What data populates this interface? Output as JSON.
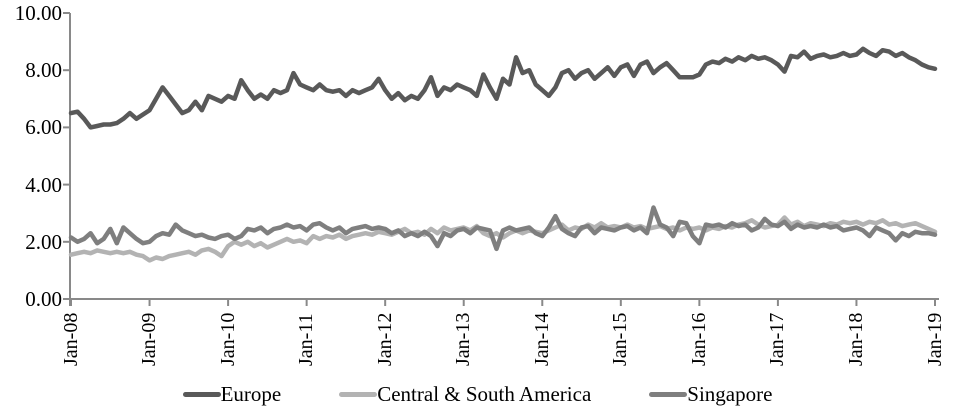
{
  "chart_data": {
    "type": "line",
    "title": "",
    "xlabel": "",
    "ylabel": "",
    "ylim": [
      0,
      10
    ],
    "grid": false,
    "legend_position": "bottom-center",
    "ytick_labels": [
      "0.00",
      "2.00",
      "4.00",
      "6.00",
      "8.00",
      "10.00"
    ],
    "x_tick_labels": [
      "Jan-08",
      "Jan-09",
      "Jan-10",
      "Jan-11",
      "Jan-12",
      "Jan-13",
      "Jan-14",
      "Jan-15",
      "Jan-16",
      "Jan-17",
      "Jan-18",
      "Jan-19"
    ],
    "x_tick_every": 12,
    "x_frequency": "monthly",
    "axis_color": "#898989",
    "series": [
      {
        "name": "Europe",
        "color": "#595959",
        "values": [
          6.5,
          6.55,
          6.3,
          6.0,
          6.05,
          6.1,
          6.1,
          6.15,
          6.3,
          6.5,
          6.3,
          6.45,
          6.6,
          7.0,
          7.4,
          7.1,
          6.8,
          6.5,
          6.6,
          6.9,
          6.6,
          7.1,
          7.0,
          6.9,
          7.1,
          7.0,
          7.65,
          7.3,
          7.0,
          7.15,
          7.0,
          7.3,
          7.2,
          7.3,
          7.9,
          7.5,
          7.4,
          7.3,
          7.5,
          7.3,
          7.25,
          7.3,
          7.1,
          7.3,
          7.2,
          7.3,
          7.4,
          7.7,
          7.3,
          7.0,
          7.2,
          6.95,
          7.1,
          7.0,
          7.3,
          7.75,
          7.1,
          7.4,
          7.3,
          7.5,
          7.4,
          7.3,
          7.1,
          7.85,
          7.4,
          7.0,
          7.7,
          7.5,
          8.45,
          7.9,
          8.0,
          7.5,
          7.3,
          7.1,
          7.4,
          7.9,
          8.0,
          7.7,
          7.9,
          8.0,
          7.7,
          7.9,
          8.1,
          7.8,
          8.1,
          8.2,
          7.8,
          8.2,
          8.3,
          7.9,
          8.1,
          8.25,
          8.0,
          7.75,
          7.75,
          7.75,
          7.85,
          8.2,
          8.3,
          8.25,
          8.4,
          8.3,
          8.45,
          8.35,
          8.5,
          8.4,
          8.45,
          8.35,
          8.2,
          7.95,
          8.5,
          8.45,
          8.65,
          8.4,
          8.5,
          8.55,
          8.45,
          8.5,
          8.6,
          8.5,
          8.55,
          8.75,
          8.6,
          8.5,
          8.7,
          8.65,
          8.5,
          8.6,
          8.45,
          8.35,
          8.2,
          8.1,
          8.05
        ]
      },
      {
        "name": "Central & South America",
        "color": "#b3b3b3",
        "values": [
          1.55,
          1.6,
          1.65,
          1.6,
          1.7,
          1.65,
          1.6,
          1.65,
          1.6,
          1.65,
          1.55,
          1.5,
          1.35,
          1.45,
          1.4,
          1.5,
          1.55,
          1.6,
          1.65,
          1.55,
          1.7,
          1.75,
          1.65,
          1.5,
          1.85,
          2.0,
          1.9,
          2.0,
          1.85,
          1.95,
          1.8,
          1.9,
          2.0,
          2.1,
          2.0,
          2.05,
          1.95,
          2.2,
          2.1,
          2.2,
          2.15,
          2.25,
          2.1,
          2.2,
          2.25,
          2.3,
          2.25,
          2.35,
          2.3,
          2.25,
          2.35,
          2.45,
          2.3,
          2.35,
          2.25,
          2.45,
          2.3,
          2.5,
          2.4,
          2.45,
          2.5,
          2.4,
          2.55,
          2.3,
          2.2,
          2.3,
          2.15,
          2.3,
          2.4,
          2.3,
          2.4,
          2.35,
          2.3,
          2.4,
          2.5,
          2.6,
          2.4,
          2.5,
          2.45,
          2.6,
          2.5,
          2.65,
          2.5,
          2.55,
          2.5,
          2.6,
          2.5,
          2.55,
          2.45,
          2.5,
          2.55,
          2.45,
          2.5,
          2.4,
          2.5,
          2.45,
          2.5,
          2.4,
          2.5,
          2.45,
          2.55,
          2.5,
          2.6,
          2.65,
          2.75,
          2.6,
          2.5,
          2.55,
          2.6,
          2.85,
          2.6,
          2.7,
          2.55,
          2.65,
          2.6,
          2.55,
          2.65,
          2.6,
          2.7,
          2.65,
          2.7,
          2.6,
          2.7,
          2.65,
          2.75,
          2.6,
          2.65,
          2.55,
          2.6,
          2.65,
          2.55,
          2.45,
          2.35
        ]
      },
      {
        "name": "Singapore",
        "color": "#7f7f7f",
        "values": [
          2.15,
          2.0,
          2.1,
          2.3,
          1.95,
          2.1,
          2.45,
          1.95,
          2.5,
          2.3,
          2.1,
          1.95,
          2.0,
          2.2,
          2.3,
          2.25,
          2.6,
          2.4,
          2.3,
          2.2,
          2.25,
          2.15,
          2.1,
          2.2,
          2.25,
          2.1,
          2.2,
          2.45,
          2.4,
          2.5,
          2.3,
          2.45,
          2.5,
          2.6,
          2.5,
          2.55,
          2.4,
          2.6,
          2.65,
          2.5,
          2.4,
          2.5,
          2.3,
          2.45,
          2.5,
          2.55,
          2.45,
          2.5,
          2.45,
          2.3,
          2.4,
          2.2,
          2.3,
          2.2,
          2.35,
          2.2,
          1.85,
          2.3,
          2.2,
          2.4,
          2.45,
          2.3,
          2.5,
          2.45,
          2.4,
          1.75,
          2.4,
          2.5,
          2.4,
          2.45,
          2.5,
          2.3,
          2.2,
          2.5,
          2.9,
          2.45,
          2.3,
          2.2,
          2.5,
          2.55,
          2.3,
          2.5,
          2.45,
          2.4,
          2.5,
          2.55,
          2.4,
          2.5,
          2.3,
          3.2,
          2.6,
          2.5,
          2.2,
          2.7,
          2.65,
          2.2,
          1.95,
          2.6,
          2.55,
          2.6,
          2.5,
          2.65,
          2.55,
          2.6,
          2.4,
          2.5,
          2.8,
          2.6,
          2.55,
          2.7,
          2.45,
          2.6,
          2.5,
          2.55,
          2.5,
          2.6,
          2.5,
          2.55,
          2.4,
          2.45,
          2.5,
          2.4,
          2.2,
          2.5,
          2.4,
          2.3,
          2.05,
          2.3,
          2.2,
          2.35,
          2.3,
          2.3,
          2.25
        ]
      }
    ]
  }
}
